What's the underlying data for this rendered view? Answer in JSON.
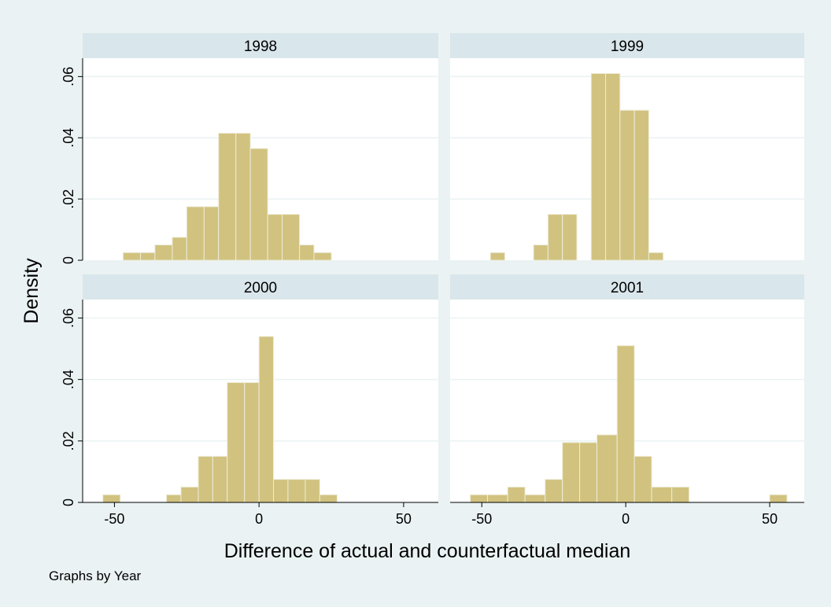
{
  "chart_data": {
    "type": "bar",
    "subtype": "histogram-faceted",
    "ylabel": "Density",
    "xlabel": "Difference of actual and counterfactual median",
    "note": "Graphs by Year",
    "xlim": [
      -61,
      62
    ],
    "ylim": [
      0,
      0.066
    ],
    "x_ticks": [
      -50,
      0,
      50
    ],
    "x_tick_labels": [
      "-50",
      "0",
      "50"
    ],
    "y_ticks": [
      0,
      0.02,
      0.04,
      0.06
    ],
    "y_tick_labels": [
      "0",
      ".02",
      ".04",
      ".06"
    ],
    "grid": true,
    "bar_color": "#d1c27f",
    "background_color": "#eaf2f3",
    "strip_color": "#d9e6eb",
    "panels": [
      {
        "title": "1998",
        "bins": [
          {
            "x0": -47,
            "x1": -41,
            "density": 0.0025
          },
          {
            "x0": -41,
            "x1": -36,
            "density": 0.0025
          },
          {
            "x0": -36,
            "x1": -30,
            "density": 0.005
          },
          {
            "x0": -30,
            "x1": -25,
            "density": 0.0075
          },
          {
            "x0": -25,
            "x1": -19,
            "density": 0.0175
          },
          {
            "x0": -19,
            "x1": -14,
            "density": 0.0175
          },
          {
            "x0": -14,
            "x1": -8,
            "density": 0.0415
          },
          {
            "x0": -8,
            "x1": -3,
            "density": 0.0415
          },
          {
            "x0": -3,
            "x1": 3,
            "density": 0.0365
          },
          {
            "x0": 3,
            "x1": 8,
            "density": 0.015
          },
          {
            "x0": 8,
            "x1": 14,
            "density": 0.015
          },
          {
            "x0": 14,
            "x1": 19,
            "density": 0.005
          },
          {
            "x0": 19,
            "x1": 25,
            "density": 0.0025
          }
        ]
      },
      {
        "title": "1999",
        "bins": [
          {
            "x0": -47,
            "x1": -42,
            "density": 0.0025
          },
          {
            "x0": -32,
            "x1": -27,
            "density": 0.005
          },
          {
            "x0": -27,
            "x1": -22,
            "density": 0.015
          },
          {
            "x0": -22,
            "x1": -17,
            "density": 0.015
          },
          {
            "x0": -12,
            "x1": -7,
            "density": 0.061
          },
          {
            "x0": -7,
            "x1": -2,
            "density": 0.061
          },
          {
            "x0": -2,
            "x1": 3,
            "density": 0.049
          },
          {
            "x0": 3,
            "x1": 8,
            "density": 0.049
          },
          {
            "x0": 8,
            "x1": 13,
            "density": 0.0025
          }
        ]
      },
      {
        "title": "2000",
        "bins": [
          {
            "x0": -54,
            "x1": -48,
            "density": 0.0025
          },
          {
            "x0": -32,
            "x1": -27,
            "density": 0.0025
          },
          {
            "x0": -27,
            "x1": -21,
            "density": 0.005
          },
          {
            "x0": -21,
            "x1": -16,
            "density": 0.015
          },
          {
            "x0": -16,
            "x1": -11,
            "density": 0.015
          },
          {
            "x0": -11,
            "x1": -5,
            "density": 0.039
          },
          {
            "x0": -5,
            "x1": 0,
            "density": 0.039
          },
          {
            "x0": 0,
            "x1": 5,
            "density": 0.054
          },
          {
            "x0": 5,
            "x1": 10,
            "density": 0.0075
          },
          {
            "x0": 10,
            "x1": 16,
            "density": 0.0075
          },
          {
            "x0": 16,
            "x1": 21,
            "density": 0.0075
          },
          {
            "x0": 21,
            "x1": 27,
            "density": 0.0025
          }
        ]
      },
      {
        "title": "2001",
        "bins": [
          {
            "x0": -54,
            "x1": -48,
            "density": 0.0025
          },
          {
            "x0": -48,
            "x1": -41,
            "density": 0.0025
          },
          {
            "x0": -41,
            "x1": -35,
            "density": 0.005
          },
          {
            "x0": -35,
            "x1": -28,
            "density": 0.0025
          },
          {
            "x0": -28,
            "x1": -22,
            "density": 0.0075
          },
          {
            "x0": -22,
            "x1": -16,
            "density": 0.0195
          },
          {
            "x0": -16,
            "x1": -10,
            "density": 0.0195
          },
          {
            "x0": -10,
            "x1": -3,
            "density": 0.022
          },
          {
            "x0": -3,
            "x1": 3,
            "density": 0.051
          },
          {
            "x0": 3,
            "x1": 9,
            "density": 0.015
          },
          {
            "x0": 9,
            "x1": 16,
            "density": 0.005
          },
          {
            "x0": 16,
            "x1": 22,
            "density": 0.005
          },
          {
            "x0": 50,
            "x1": 56,
            "density": 0.0025
          }
        ]
      }
    ]
  }
}
